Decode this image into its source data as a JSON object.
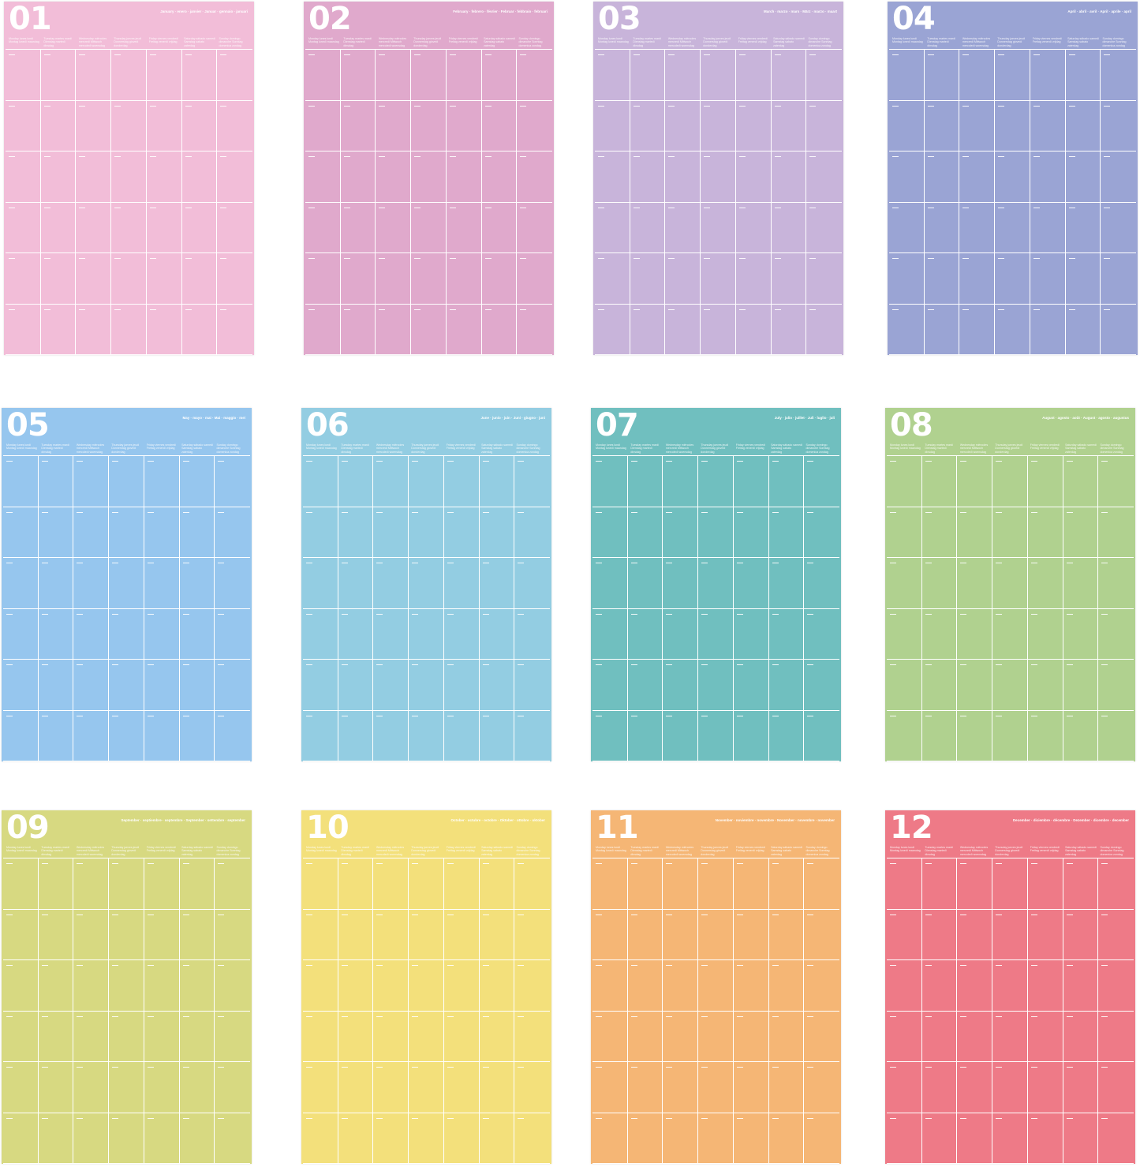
{
  "weekdays": [
    "Monday lunes lundi Montag lunedì maandag",
    "Tuesday martes mardi Dienstag martedì dinsdag",
    "Wednesday miércoles mercredi Mittwoch mercoledì woensdag",
    "Thursday jueves jeudi Donnerstag giovedì donderdag",
    "Friday viernes vendredi Freitag venerdì vrijdag",
    "Saturday sábado samedi Samstag sabato zaterdag",
    "Sunday domingo dimanche Sonntag domenica zondag"
  ],
  "months": [
    {
      "number": "01",
      "name": "January · enero · janvier · Januar · gennaio · januari",
      "color": "#f2bdd8"
    },
    {
      "number": "02",
      "name": "February · febrero · février · Februar · febbraio · februari",
      "color": "#e0a9cc"
    },
    {
      "number": "03",
      "name": "March · marzo · mars · März · marzo · maart",
      "color": "#c8b4da"
    },
    {
      "number": "04",
      "name": "April · abril · avril · April · aprile · april",
      "color": "#9aa4d4"
    },
    {
      "number": "05",
      "name": "May · mayo · mai · Mai · maggio · mei",
      "color": "#96c6ee"
    },
    {
      "number": "06",
      "name": "June · junio · juin · Juni · giugno · juni",
      "color": "#93cde2"
    },
    {
      "number": "07",
      "name": "July · julio · juillet · Juli · luglio · juli",
      "color": "#70bfbf"
    },
    {
      "number": "08",
      "name": "August · agosto · août · August · agosto · augustus",
      "color": "#b0d18f"
    },
    {
      "number": "09",
      "name": "September · septiembre · septembre · September · settembre · september",
      "color": "#d7d981"
    },
    {
      "number": "10",
      "name": "October · octubre · octobre · Oktober · ottobre · oktober",
      "color": "#f3e07b"
    },
    {
      "number": "11",
      "name": "November · noviembre · novembre · November · novembre · november",
      "color": "#f5b675"
    },
    {
      "number": "12",
      "name": "December · diciembre · décembre · Dezember · dicembre · december",
      "color": "#ee7a87"
    }
  ]
}
